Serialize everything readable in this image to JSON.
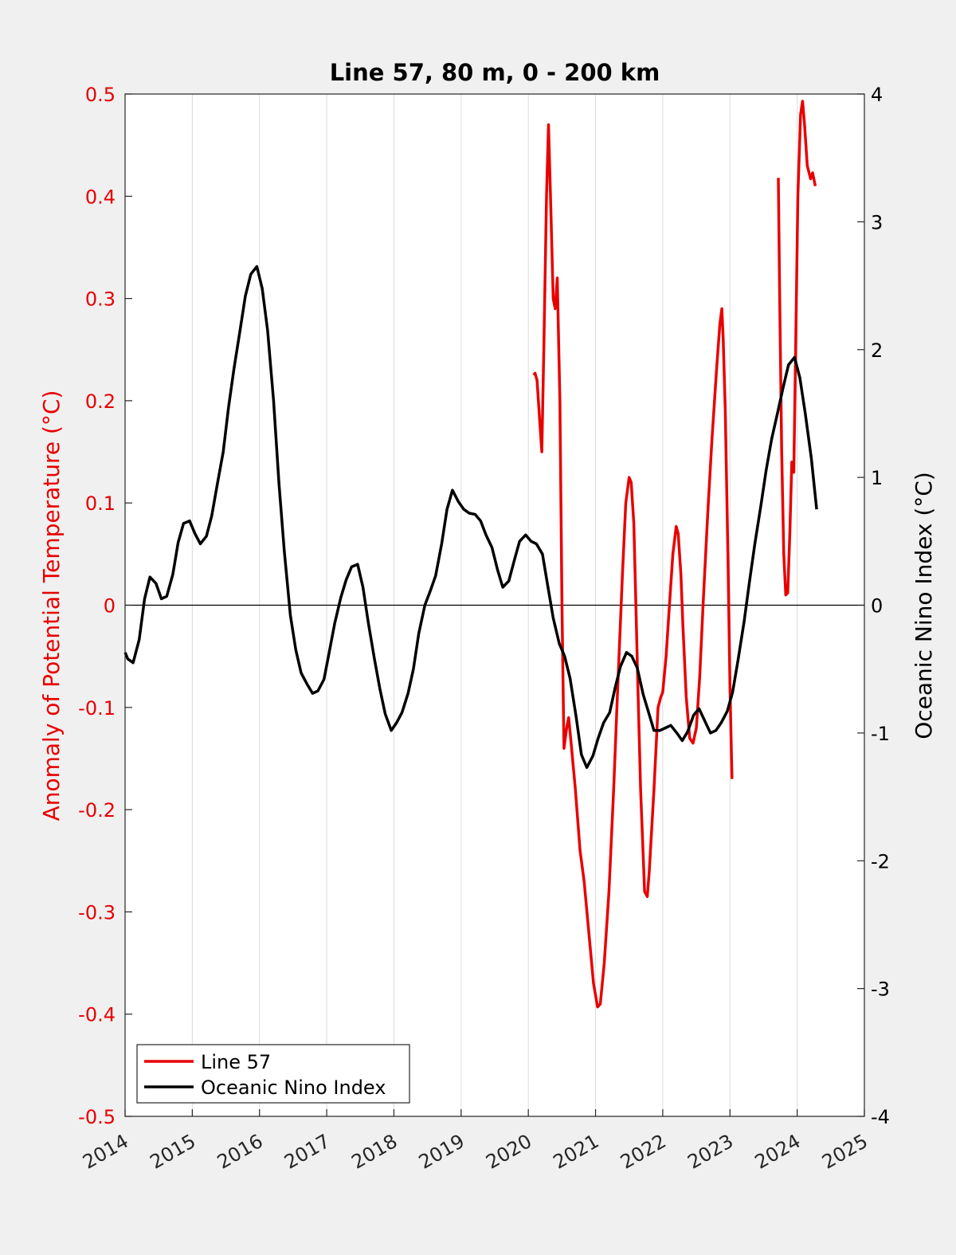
{
  "chart_data": {
    "type": "line",
    "title": "Line 57, 80 m, 0 - 200 km",
    "xlim": [
      2014,
      2025
    ],
    "x_ticks": [
      "2014",
      "2015",
      "2016",
      "2017",
      "2018",
      "2019",
      "2020",
      "2021",
      "2022",
      "2023",
      "2024",
      "2025"
    ],
    "left_axis": {
      "label": "Anomaly of Potential Temperature (°C)",
      "lim": [
        -0.5,
        0.5
      ],
      "ticks": [
        "-0.5",
        "-0.4",
        "-0.3",
        "-0.2",
        "-0.1",
        "0",
        "0.1",
        "0.2",
        "0.3",
        "0.4",
        "0.5"
      ],
      "color": "#e80000"
    },
    "right_axis": {
      "label": "Oceanic Nino Index (°C)",
      "lim": [
        -4,
        4
      ],
      "ticks": [
        "-4",
        "-3",
        "-2",
        "-1",
        "0",
        "1",
        "2",
        "3",
        "4"
      ],
      "color": "#000000"
    },
    "grid": "vertical",
    "zero_line": true,
    "legend_position": "bottom-left",
    "series": [
      {
        "name": "Line 57",
        "axis": "left",
        "color": "#e80000",
        "segments": [
          [
            [
              2020.08,
              0.225
            ],
            [
              2020.1,
              0.227
            ],
            [
              2020.13,
              0.22
            ],
            [
              2020.17,
              0.18
            ],
            [
              2020.2,
              0.15
            ],
            [
              2020.23,
              0.25
            ],
            [
              2020.27,
              0.4
            ],
            [
              2020.3,
              0.47
            ],
            [
              2020.33,
              0.4
            ],
            [
              2020.37,
              0.3
            ],
            [
              2020.4,
              0.29
            ],
            [
              2020.43,
              0.32
            ],
            [
              2020.47,
              0.2
            ],
            [
              2020.5,
              0.0
            ],
            [
              2020.53,
              -0.14
            ],
            [
              2020.57,
              -0.12
            ],
            [
              2020.6,
              -0.11
            ],
            [
              2020.63,
              -0.13
            ],
            [
              2020.7,
              -0.18
            ],
            [
              2020.77,
              -0.24
            ],
            [
              2020.83,
              -0.27
            ],
            [
              2020.9,
              -0.32
            ],
            [
              2020.97,
              -0.37
            ],
            [
              2021.03,
              -0.393
            ],
            [
              2021.07,
              -0.39
            ],
            [
              2021.13,
              -0.35
            ],
            [
              2021.2,
              -0.28
            ],
            [
              2021.27,
              -0.18
            ],
            [
              2021.33,
              -0.08
            ],
            [
              2021.4,
              0.03
            ],
            [
              2021.45,
              0.1
            ],
            [
              2021.5,
              0.125
            ],
            [
              2021.53,
              0.12
            ],
            [
              2021.57,
              0.08
            ],
            [
              2021.6,
              0.0
            ],
            [
              2021.63,
              -0.08
            ],
            [
              2021.67,
              -0.18
            ],
            [
              2021.73,
              -0.28
            ],
            [
              2021.77,
              -0.285
            ],
            [
              2021.8,
              -0.26
            ],
            [
              2021.87,
              -0.18
            ],
            [
              2021.93,
              -0.1
            ],
            [
              2021.97,
              -0.09
            ],
            [
              2022.0,
              -0.085
            ],
            [
              2022.05,
              -0.05
            ],
            [
              2022.1,
              0.0
            ],
            [
              2022.15,
              0.05
            ],
            [
              2022.2,
              0.077
            ],
            [
              2022.23,
              0.07
            ],
            [
              2022.27,
              0.03
            ],
            [
              2022.3,
              -0.02
            ],
            [
              2022.35,
              -0.09
            ],
            [
              2022.4,
              -0.13
            ],
            [
              2022.45,
              -0.135
            ],
            [
              2022.5,
              -0.12
            ],
            [
              2022.55,
              -0.07
            ],
            [
              2022.6,
              0.0
            ],
            [
              2022.67,
              0.09
            ],
            [
              2022.73,
              0.16
            ],
            [
              2022.8,
              0.23
            ],
            [
              2022.85,
              0.275
            ],
            [
              2022.88,
              0.29
            ],
            [
              2022.9,
              0.26
            ],
            [
              2022.93,
              0.19
            ],
            [
              2022.97,
              0.05
            ],
            [
              2023.0,
              -0.08
            ],
            [
              2023.03,
              -0.17
            ]
          ],
          [
            [
              2023.72,
              0.418
            ],
            [
              2023.74,
              0.3
            ],
            [
              2023.77,
              0.15
            ],
            [
              2023.8,
              0.05
            ],
            [
              2023.83,
              0.01
            ],
            [
              2023.86,
              0.012
            ],
            [
              2023.89,
              0.07
            ],
            [
              2023.92,
              0.14
            ],
            [
              2023.95,
              0.13
            ],
            [
              2023.98,
              0.26
            ],
            [
              2024.01,
              0.4
            ],
            [
              2024.05,
              0.48
            ],
            [
              2024.08,
              0.493
            ],
            [
              2024.11,
              0.47
            ],
            [
              2024.15,
              0.43
            ],
            [
              2024.2,
              0.417
            ],
            [
              2024.23,
              0.423
            ],
            [
              2024.27,
              0.41
            ]
          ]
        ]
      },
      {
        "name": "Oceanic Nino Index",
        "axis": "right",
        "color": "#000000",
        "points": [
          [
            2014.0,
            -0.37
          ],
          [
            2014.04,
            -0.42
          ],
          [
            2014.12,
            -0.45
          ],
          [
            2014.21,
            -0.27
          ],
          [
            2014.29,
            0.05
          ],
          [
            2014.37,
            0.22
          ],
          [
            2014.46,
            0.17
          ],
          [
            2014.54,
            0.05
          ],
          [
            2014.62,
            0.07
          ],
          [
            2014.71,
            0.24
          ],
          [
            2014.79,
            0.49
          ],
          [
            2014.87,
            0.64
          ],
          [
            2014.96,
            0.66
          ],
          [
            2015.04,
            0.56
          ],
          [
            2015.12,
            0.48
          ],
          [
            2015.21,
            0.54
          ],
          [
            2015.29,
            0.7
          ],
          [
            2015.37,
            0.94
          ],
          [
            2015.46,
            1.2
          ],
          [
            2015.54,
            1.55
          ],
          [
            2015.62,
            1.85
          ],
          [
            2015.71,
            2.15
          ],
          [
            2015.79,
            2.42
          ],
          [
            2015.87,
            2.59
          ],
          [
            2015.96,
            2.65
          ],
          [
            2016.04,
            2.48
          ],
          [
            2016.12,
            2.15
          ],
          [
            2016.21,
            1.6
          ],
          [
            2016.29,
            0.95
          ],
          [
            2016.37,
            0.42
          ],
          [
            2016.46,
            -0.08
          ],
          [
            2016.54,
            -0.35
          ],
          [
            2016.62,
            -0.53
          ],
          [
            2016.71,
            -0.62
          ],
          [
            2016.79,
            -0.69
          ],
          [
            2016.87,
            -0.67
          ],
          [
            2016.96,
            -0.58
          ],
          [
            2017.04,
            -0.36
          ],
          [
            2017.12,
            -0.14
          ],
          [
            2017.21,
            0.06
          ],
          [
            2017.29,
            0.2
          ],
          [
            2017.37,
            0.3
          ],
          [
            2017.46,
            0.32
          ],
          [
            2017.54,
            0.14
          ],
          [
            2017.62,
            -0.14
          ],
          [
            2017.71,
            -0.42
          ],
          [
            2017.79,
            -0.65
          ],
          [
            2017.87,
            -0.85
          ],
          [
            2017.96,
            -0.98
          ],
          [
            2018.04,
            -0.92
          ],
          [
            2018.12,
            -0.84
          ],
          [
            2018.21,
            -0.69
          ],
          [
            2018.29,
            -0.5
          ],
          [
            2018.37,
            -0.22
          ],
          [
            2018.46,
            0.0
          ],
          [
            2018.54,
            0.11
          ],
          [
            2018.62,
            0.23
          ],
          [
            2018.71,
            0.48
          ],
          [
            2018.79,
            0.75
          ],
          [
            2018.87,
            0.9
          ],
          [
            2018.96,
            0.81
          ],
          [
            2019.04,
            0.75
          ],
          [
            2019.12,
            0.72
          ],
          [
            2019.21,
            0.71
          ],
          [
            2019.29,
            0.66
          ],
          [
            2019.37,
            0.55
          ],
          [
            2019.46,
            0.45
          ],
          [
            2019.54,
            0.28
          ],
          [
            2019.62,
            0.14
          ],
          [
            2019.71,
            0.19
          ],
          [
            2019.79,
            0.35
          ],
          [
            2019.87,
            0.5
          ],
          [
            2019.96,
            0.55
          ],
          [
            2020.04,
            0.5
          ],
          [
            2020.12,
            0.48
          ],
          [
            2020.21,
            0.4
          ],
          [
            2020.29,
            0.15
          ],
          [
            2020.37,
            -0.1
          ],
          [
            2020.46,
            -0.3
          ],
          [
            2020.54,
            -0.4
          ],
          [
            2020.62,
            -0.57
          ],
          [
            2020.71,
            -0.87
          ],
          [
            2020.79,
            -1.17
          ],
          [
            2020.87,
            -1.27
          ],
          [
            2020.96,
            -1.18
          ],
          [
            2021.04,
            -1.04
          ],
          [
            2021.12,
            -0.92
          ],
          [
            2021.21,
            -0.84
          ],
          [
            2021.29,
            -0.65
          ],
          [
            2021.37,
            -0.48
          ],
          [
            2021.46,
            -0.37
          ],
          [
            2021.54,
            -0.4
          ],
          [
            2021.62,
            -0.49
          ],
          [
            2021.71,
            -0.7
          ],
          [
            2021.79,
            -0.84
          ],
          [
            2021.87,
            -0.98
          ],
          [
            2021.96,
            -0.98
          ],
          [
            2022.04,
            -0.96
          ],
          [
            2022.12,
            -0.94
          ],
          [
            2022.21,
            -1.0
          ],
          [
            2022.29,
            -1.06
          ],
          [
            2022.37,
            -0.99
          ],
          [
            2022.46,
            -0.86
          ],
          [
            2022.54,
            -0.81
          ],
          [
            2022.62,
            -0.9
          ],
          [
            2022.71,
            -1.0
          ],
          [
            2022.79,
            -0.98
          ],
          [
            2022.87,
            -0.92
          ],
          [
            2022.96,
            -0.83
          ],
          [
            2023.04,
            -0.68
          ],
          [
            2023.12,
            -0.43
          ],
          [
            2023.21,
            -0.13
          ],
          [
            2023.29,
            0.18
          ],
          [
            2023.37,
            0.48
          ],
          [
            2023.46,
            0.78
          ],
          [
            2023.54,
            1.06
          ],
          [
            2023.62,
            1.3
          ],
          [
            2023.71,
            1.51
          ],
          [
            2023.79,
            1.7
          ],
          [
            2023.87,
            1.88
          ],
          [
            2023.96,
            1.94
          ],
          [
            2024.04,
            1.78
          ],
          [
            2024.12,
            1.5
          ],
          [
            2024.21,
            1.15
          ],
          [
            2024.29,
            0.75
          ]
        ]
      }
    ]
  }
}
